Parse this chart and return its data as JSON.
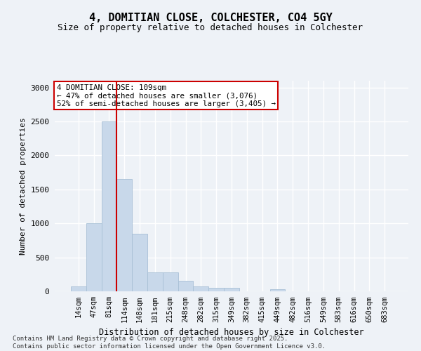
{
  "title_line1": "4, DOMITIAN CLOSE, COLCHESTER, CO4 5GY",
  "title_line2": "Size of property relative to detached houses in Colchester",
  "xlabel": "Distribution of detached houses by size in Colchester",
  "ylabel": "Number of detached properties",
  "categories": [
    "14sqm",
    "47sqm",
    "81sqm",
    "114sqm",
    "148sqm",
    "181sqm",
    "215sqm",
    "248sqm",
    "282sqm",
    "315sqm",
    "349sqm",
    "382sqm",
    "415sqm",
    "449sqm",
    "482sqm",
    "516sqm",
    "549sqm",
    "583sqm",
    "616sqm",
    "650sqm",
    "683sqm"
  ],
  "values": [
    75,
    1000,
    2500,
    1650,
    850,
    280,
    280,
    150,
    75,
    50,
    50,
    0,
    0,
    35,
    0,
    0,
    0,
    0,
    0,
    0,
    0
  ],
  "bar_color": "#c8d8ea",
  "bar_edgecolor": "#a8c0d6",
  "vline_x_index": 2.5,
  "vline_color": "#cc0000",
  "annotation_text": "4 DOMITIAN CLOSE: 109sqm\n← 47% of detached houses are smaller (3,076)\n52% of semi-detached houses are larger (3,405) →",
  "annotation_box_color": "#cc0000",
  "ylim": [
    0,
    3100
  ],
  "yticks": [
    0,
    500,
    1000,
    1500,
    2000,
    2500,
    3000
  ],
  "footer_line1": "Contains HM Land Registry data © Crown copyright and database right 2025.",
  "footer_line2": "Contains public sector information licensed under the Open Government Licence v3.0.",
  "bg_color": "#eef2f7",
  "plot_bg_color": "#eef2f7",
  "grid_color": "#ffffff"
}
